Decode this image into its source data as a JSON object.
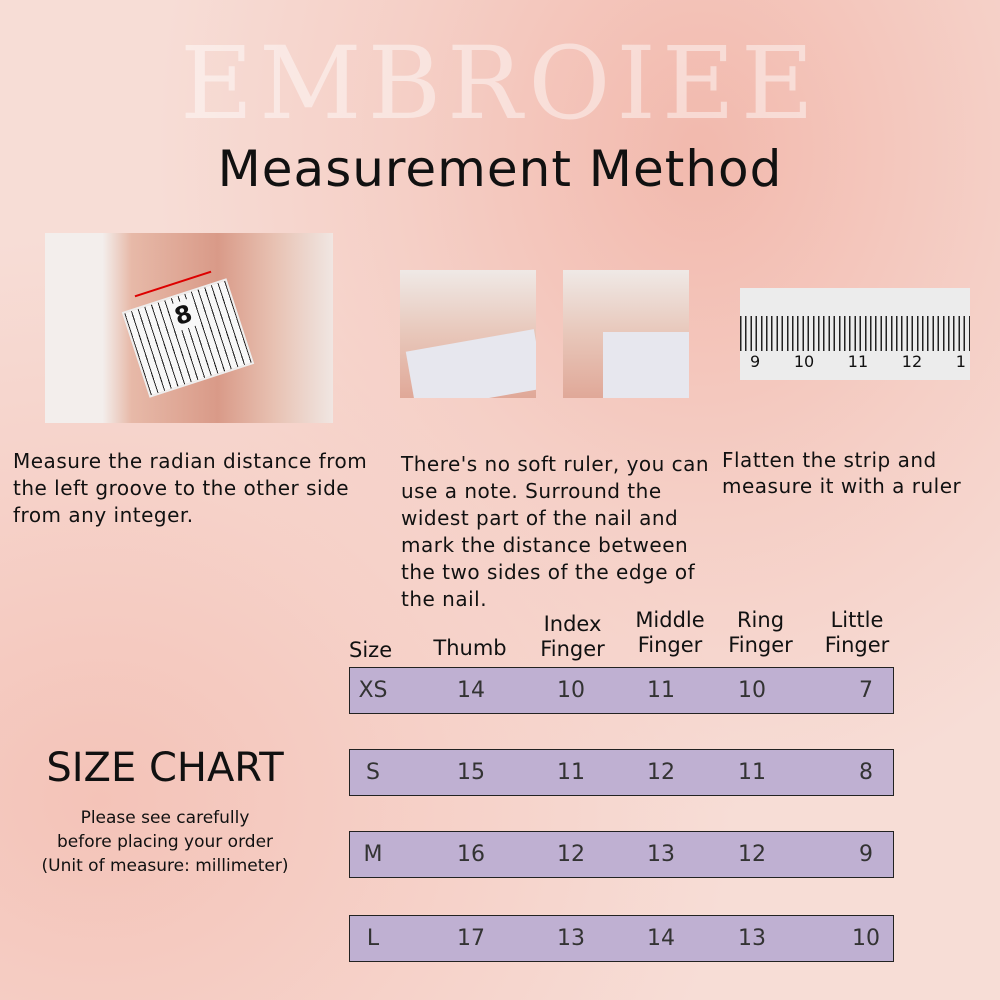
{
  "brand": "EMBROIEE",
  "title": "Measurement Method",
  "steps": [
    {
      "caption": "Measure the radian distance from the left groove to the other side from any integer.",
      "ruler_mark": "8"
    },
    {
      "caption": "There's no soft ruler, you can use a note. Surround the widest part of the nail and mark the distance between the two sides of the edge of the nail."
    },
    {
      "caption": "Flatten the strip and measure it with a ruler",
      "ruler_numbers": [
        "9",
        "10",
        "11",
        "12",
        "1"
      ]
    }
  ],
  "size_chart": {
    "title": "SIZE CHART",
    "note": [
      "Please see carefully",
      "before placing your order",
      "(Unit of measure: millimeter)"
    ],
    "headers": [
      "Size",
      "Thumb",
      "Index Finger",
      "Middle Finger",
      "Ring Finger",
      "Little Finger"
    ],
    "rows": [
      [
        "XS",
        "14",
        "10",
        "11",
        "10",
        "7"
      ],
      [
        "S",
        "15",
        "11",
        "12",
        "11",
        "8"
      ],
      [
        "M",
        "16",
        "12",
        "13",
        "12",
        "9"
      ],
      [
        "L",
        "17",
        "13",
        "14",
        "13",
        "10"
      ]
    ],
    "row_color": "#bfb0d2"
  }
}
